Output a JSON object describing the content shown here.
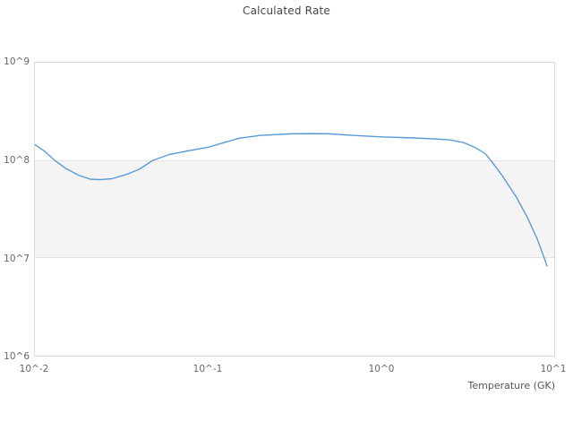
{
  "chart_data": {
    "type": "line",
    "title": "Calculated Rate",
    "xlabel": "Temperature (GK)",
    "ylabel": "",
    "x_scale": "log",
    "y_scale": "log",
    "xlim": [
      0.01,
      10
    ],
    "ylim": [
      1000000,
      1000000000
    ],
    "grid": "log-decade band only, no vertical gridlines",
    "legend": "none",
    "x_tick_labels": [
      "10^-2",
      "10^-1",
      "10^0",
      "10^1"
    ],
    "y_tick_labels": [
      "10^9",
      "10^8",
      "10^7",
      "10^6"
    ],
    "frame_color": "#d9d9d9",
    "tick_color": "#666666",
    "title_color": "#474747",
    "shaded_band": {
      "y_from": 10000000,
      "y_to": 100000000,
      "color": "#f4f4f4",
      "edge_color": "#e3e3e3"
    },
    "series": [
      {
        "name": "calculated-rate",
        "color": "#5b9bd5",
        "width": 1.4,
        "points": [
          [
            0.01,
            145000000.0
          ],
          [
            0.0115,
            122000000.0
          ],
          [
            0.013,
            100000000.0
          ],
          [
            0.015,
            83000000.0
          ],
          [
            0.018,
            70000000.0
          ],
          [
            0.021,
            64000000.0
          ],
          [
            0.024,
            63500000.0
          ],
          [
            0.028,
            65000000.0
          ],
          [
            0.034,
            72000000.0
          ],
          [
            0.04,
            81000000.0
          ],
          [
            0.048,
            100000000.0
          ],
          [
            0.06,
            115000000.0
          ],
          [
            0.08,
            127000000.0
          ],
          [
            0.1,
            136000000.0
          ],
          [
            0.15,
            168000000.0
          ],
          [
            0.2,
            180000000.0
          ],
          [
            0.3,
            187000000.0
          ],
          [
            0.4,
            188000000.0
          ],
          [
            0.5,
            187000000.0
          ],
          [
            0.7,
            180000000.0
          ],
          [
            1.0,
            174000000.0
          ],
          [
            1.5,
            170000000.0
          ],
          [
            2.0,
            166000000.0
          ],
          [
            2.5,
            162000000.0
          ],
          [
            3.0,
            152000000.0
          ],
          [
            3.5,
            135000000.0
          ],
          [
            4.0,
            117000000.0
          ],
          [
            4.5,
            90000000.0
          ],
          [
            5.0,
            70000000.0
          ],
          [
            6.0,
            43000000.0
          ],
          [
            7.0,
            26000000.0
          ],
          [
            8.0,
            15500000.0
          ],
          [
            9.1,
            8300000.0
          ]
        ]
      }
    ]
  }
}
